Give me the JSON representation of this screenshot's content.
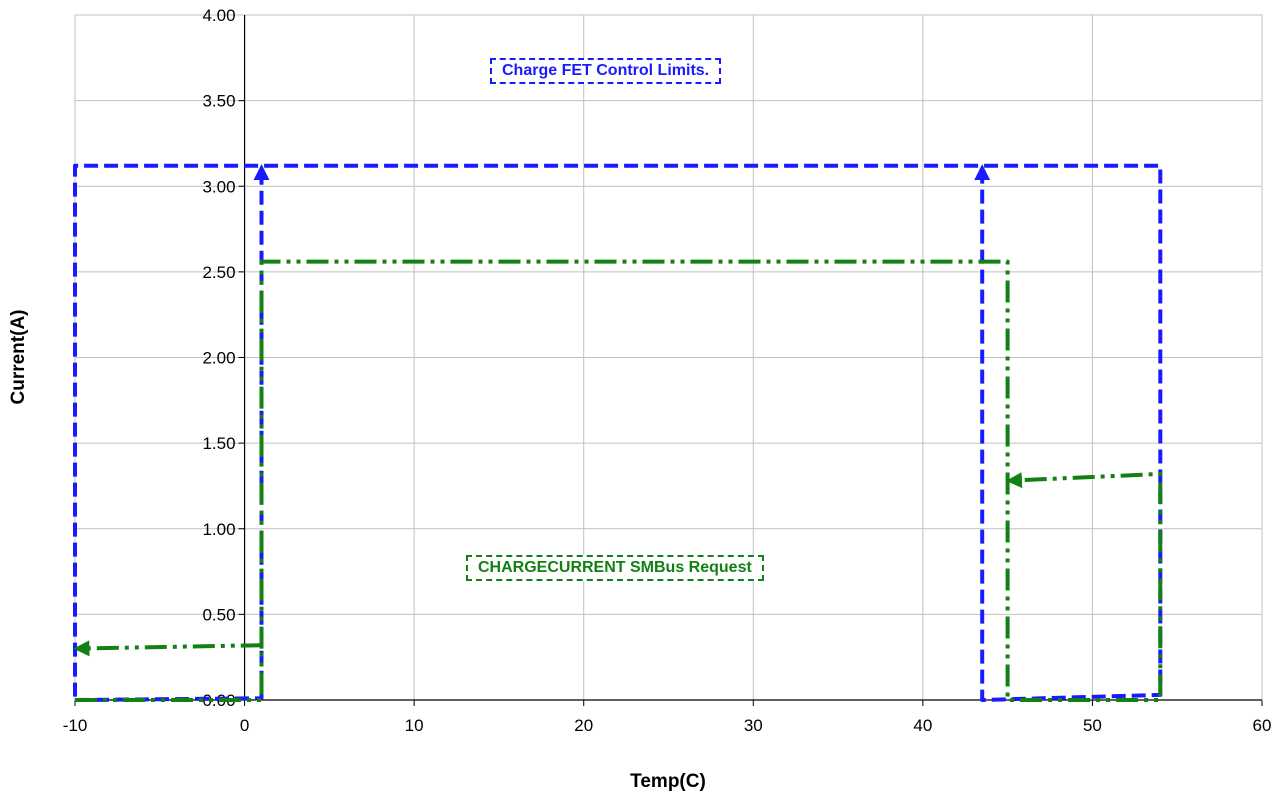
{
  "chart_data": {
    "type": "line",
    "xlabel": "Temp(C)",
    "ylabel": "Current(A)",
    "xlim": [
      -10,
      60
    ],
    "ylim": [
      0,
      4
    ],
    "x_ticks": [
      -10,
      0,
      10,
      20,
      30,
      40,
      50,
      60
    ],
    "y_ticks": [
      "0.00",
      "0.50",
      "1.00",
      "1.50",
      "2.00",
      "2.50",
      "3.00",
      "3.50",
      "4.00"
    ],
    "grid": true,
    "colors": {
      "fet": "#1a1aff",
      "request": "#138013"
    },
    "annotations": {
      "fet": "Charge FET Control Limits.",
      "request": "CHARGECURRENT   SMBus Request"
    },
    "series": [
      {
        "key": "fet",
        "style": "dashed",
        "segments": [
          [
            [
              -10,
              0.02
            ],
            [
              -10,
              3.12
            ],
            [
              54,
              3.12
            ],
            [
              54,
              0.03
            ],
            [
              43.5,
              0.0
            ],
            [
              43.5,
              3.12
            ]
          ],
          [
            [
              -10,
              0.0
            ],
            [
              1,
              0.01
            ],
            [
              1,
              3.12
            ]
          ]
        ]
      },
      {
        "key": "request",
        "style": "dashdot",
        "segments": [
          [
            [
              -10,
              0.0
            ],
            [
              1,
              0.0
            ],
            [
              1,
              0.32
            ],
            [
              -10,
              0.3
            ]
          ],
          [
            [
              1,
              0.3
            ],
            [
              1,
              2.56
            ],
            [
              45,
              2.56
            ],
            [
              45,
              0.0
            ],
            [
              54,
              0.0
            ],
            [
              54,
              1.32
            ],
            [
              45,
              1.28
            ]
          ]
        ]
      }
    ]
  }
}
